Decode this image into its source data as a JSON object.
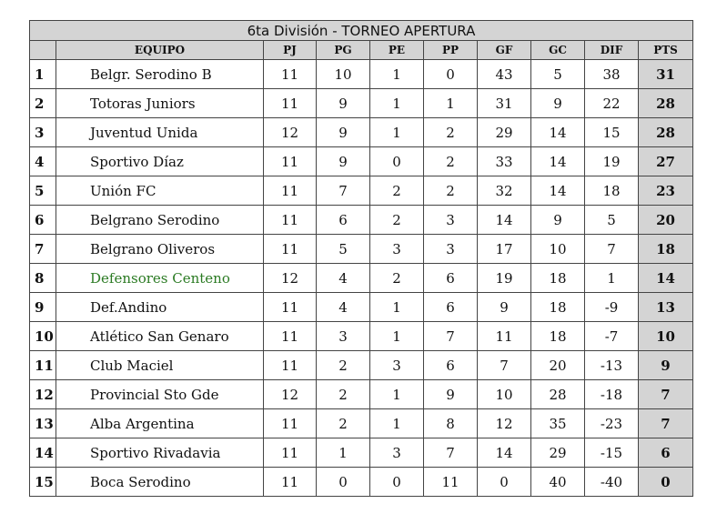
{
  "header": {
    "title": "6ta División - TORNEO APERTURA"
  },
  "table": {
    "columns": [
      "EQUIPO",
      "PJ",
      "PG",
      "PE",
      "PP",
      "GF",
      "GC",
      "DIF",
      "PTS"
    ],
    "rows": [
      [
        1,
        "Belgr. Serodino B",
        11,
        10,
        1,
        0,
        43,
        5,
        38,
        31
      ],
      [
        2,
        "Totoras Juniors",
        11,
        9,
        1,
        1,
        31,
        9,
        22,
        28
      ],
      [
        3,
        "Juventud Unida",
        12,
        9,
        1,
        2,
        29,
        14,
        15,
        28
      ],
      [
        4,
        "Sportivo Díaz",
        11,
        9,
        0,
        2,
        33,
        14,
        19,
        27
      ],
      [
        5,
        "Unión FC",
        11,
        7,
        2,
        2,
        32,
        14,
        18,
        23
      ],
      [
        6,
        "Belgrano Serodino",
        11,
        6,
        2,
        3,
        14,
        9,
        5,
        20
      ],
      [
        7,
        "Belgrano Oliveros",
        11,
        5,
        3,
        3,
        17,
        10,
        7,
        18
      ],
      [
        8,
        "Defensores Centeno",
        12,
        4,
        2,
        6,
        19,
        18,
        1,
        14
      ],
      [
        9,
        "Def.Andino",
        11,
        4,
        1,
        6,
        9,
        18,
        -9,
        13
      ],
      [
        10,
        "Atlético San Genaro",
        11,
        3,
        1,
        7,
        11,
        18,
        -7,
        10
      ],
      [
        11,
        "Club Maciel",
        11,
        2,
        3,
        6,
        7,
        20,
        -13,
        9
      ],
      [
        12,
        "Provincial Sto Gde",
        12,
        2,
        1,
        9,
        10,
        28,
        -18,
        7
      ],
      [
        13,
        "Alba Argentina",
        11,
        2,
        1,
        8,
        12,
        35,
        -23,
        7
      ],
      [
        14,
        "Sportivo Rivadavia",
        11,
        1,
        3,
        7,
        14,
        29,
        -15,
        6
      ],
      [
        15,
        "Boca Serodino",
        11,
        0,
        0,
        11,
        0,
        40,
        -40,
        0
      ]
    ]
  }
}
